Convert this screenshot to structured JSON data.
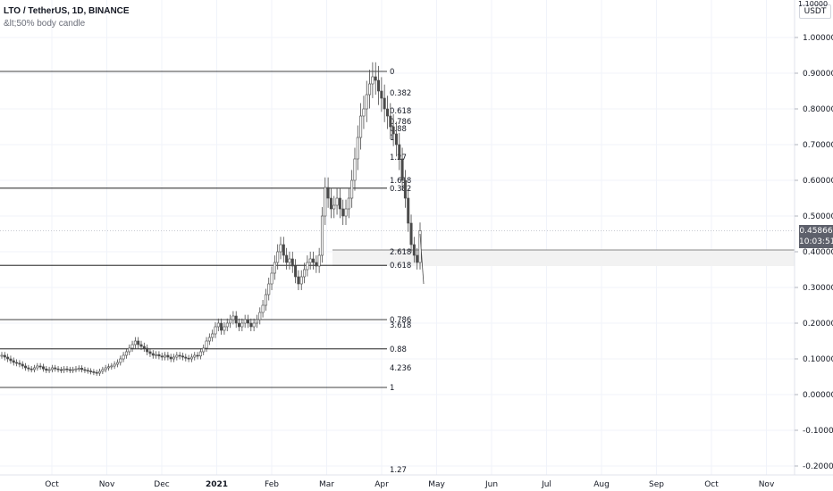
{
  "header": {
    "title": "LTO / TetherUS, 1D, BINANCE",
    "subtitle": "&lt;50% body candle"
  },
  "price_axis": {
    "currency_label": "USDT",
    "top_label": "1.10000",
    "ticks": [
      {
        "v": 1.0,
        "label": "1.00000"
      },
      {
        "v": 0.9,
        "label": "0.90000"
      },
      {
        "v": 0.8,
        "label": "0.80000"
      },
      {
        "v": 0.7,
        "label": "0.70000"
      },
      {
        "v": 0.6,
        "label": "0.60000"
      },
      {
        "v": 0.5,
        "label": "0.50000"
      },
      {
        "v": 0.4,
        "label": "0.40000"
      },
      {
        "v": 0.3,
        "label": "0.30000"
      },
      {
        "v": 0.2,
        "label": "0.20000"
      },
      {
        "v": 0.1,
        "label": "0.10000"
      },
      {
        "v": 0.0,
        "label": "0.00000"
      },
      {
        "v": -0.1,
        "label": "-0.10000"
      },
      {
        "v": -0.2,
        "label": "-0.20000"
      }
    ],
    "current_price": "0.45866",
    "countdown": "10:03:51",
    "current_value": 0.45866
  },
  "time_axis": {
    "labels": [
      {
        "label": "Oct",
        "month": 9
      },
      {
        "label": "Nov",
        "month": 10
      },
      {
        "label": "Dec",
        "month": 11
      },
      {
        "label": "2021",
        "month": 12,
        "bold": true
      },
      {
        "label": "Feb",
        "month": 13
      },
      {
        "label": "Mar",
        "month": 14
      },
      {
        "label": "Apr",
        "month": 15
      },
      {
        "label": "May",
        "month": 16
      },
      {
        "label": "Jun",
        "month": 17
      },
      {
        "label": "Jul",
        "month": 18
      },
      {
        "label": "Aug",
        "month": 19
      },
      {
        "label": "Sep",
        "month": 20
      },
      {
        "label": "Oct",
        "month": 21
      },
      {
        "label": "Nov",
        "month": 22
      }
    ]
  },
  "fib_levels": [
    {
      "label": "0",
      "value": 0.905
    },
    {
      "label": "0.382",
      "value": 0.845
    },
    {
      "label": "0.618",
      "value": 0.795
    },
    {
      "label": "0.786",
      "value": 0.765
    },
    {
      "label": "0.88",
      "value": 0.745
    },
    {
      "label": "1",
      "value": 0.72
    },
    {
      "label": "1.27",
      "value": 0.665
    },
    {
      "label": "1.618",
      "value": 0.6
    },
    {
      "label": "0.382",
      "value": 0.578
    },
    {
      "label": "2.618",
      "value": 0.4
    },
    {
      "label": "0.618",
      "value": 0.362
    },
    {
      "label": "0.786",
      "value": 0.21
    },
    {
      "label": "3.618",
      "value": 0.195
    },
    {
      "label": "0.88",
      "value": 0.128
    },
    {
      "label": "4.236",
      "value": 0.075
    },
    {
      "label": "1",
      "value": 0.02
    },
    {
      "label": "1.27",
      "value": -0.21
    }
  ],
  "colors": {
    "candle": "#4a4a4a",
    "grid": "#f0f3fa",
    "axis_text": "#131722",
    "fib_line": "#000000",
    "zone_fill": "#f2f2f2",
    "price_badge": "#5d606b"
  },
  "price_series": [
    0.11,
    0.105,
    0.1,
    0.095,
    0.09,
    0.088,
    0.085,
    0.08,
    0.075,
    0.072,
    0.07,
    0.075,
    0.08,
    0.078,
    0.072,
    0.068,
    0.07,
    0.075,
    0.072,
    0.07,
    0.068,
    0.072,
    0.07,
    0.068,
    0.07,
    0.072,
    0.074,
    0.07,
    0.068,
    0.066,
    0.064,
    0.062,
    0.06,
    0.065,
    0.07,
    0.075,
    0.078,
    0.08,
    0.085,
    0.09,
    0.1,
    0.11,
    0.12,
    0.13,
    0.14,
    0.15,
    0.14,
    0.135,
    0.13,
    0.12,
    0.115,
    0.11,
    0.112,
    0.108,
    0.105,
    0.11,
    0.105,
    0.1,
    0.105,
    0.11,
    0.108,
    0.105,
    0.102,
    0.1,
    0.105,
    0.11,
    0.108,
    0.12,
    0.13,
    0.15,
    0.16,
    0.17,
    0.19,
    0.2,
    0.18,
    0.19,
    0.2,
    0.21,
    0.22,
    0.2,
    0.19,
    0.2,
    0.21,
    0.2,
    0.19,
    0.2,
    0.21,
    0.23,
    0.25,
    0.28,
    0.31,
    0.34,
    0.37,
    0.4,
    0.42,
    0.39,
    0.37,
    0.38,
    0.36,
    0.33,
    0.31,
    0.33,
    0.35,
    0.37,
    0.38,
    0.37,
    0.36,
    0.39,
    0.5,
    0.58,
    0.55,
    0.52,
    0.53,
    0.55,
    0.52,
    0.5,
    0.52,
    0.55,
    0.6,
    0.66,
    0.72,
    0.78,
    0.8,
    0.84,
    0.87,
    0.89,
    0.88,
    0.85,
    0.83,
    0.8,
    0.78,
    0.75,
    0.73,
    0.7,
    0.66,
    0.6,
    0.55,
    0.48,
    0.42,
    0.39,
    0.37,
    0.45866
  ]
}
